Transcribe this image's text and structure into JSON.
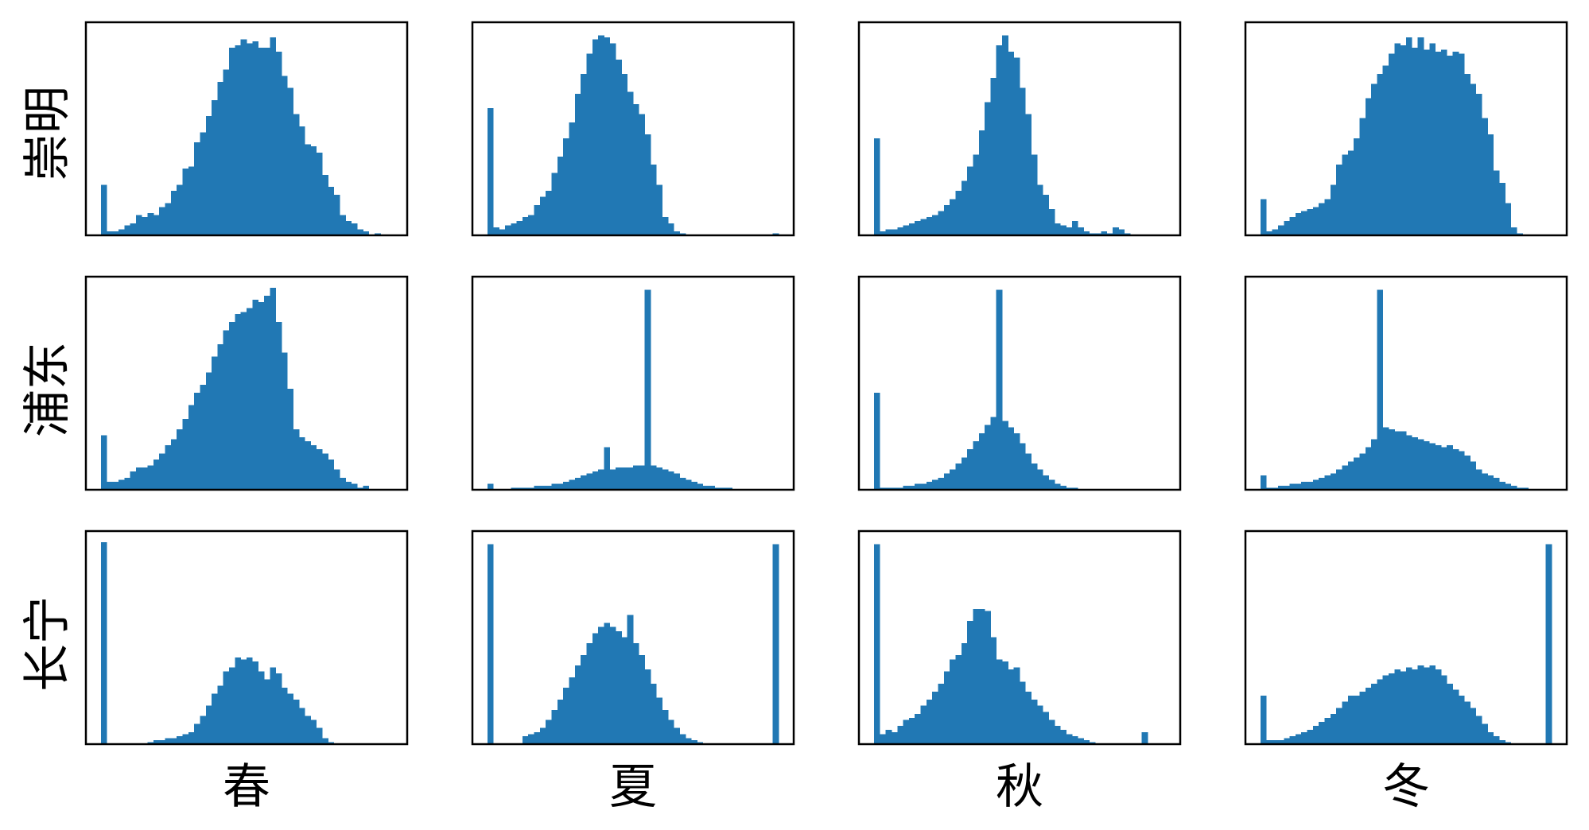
{
  "chart_data": {
    "type": "bar",
    "layout": "small-multiples-grid",
    "rows": [
      "崇明",
      "浦东",
      "长宁"
    ],
    "columns": [
      "春",
      "夏",
      "秋",
      "冬"
    ],
    "x_ticks_shown": false,
    "y_ticks_shown": false,
    "bar_color": "#2178b4",
    "bins_per_panel": 50,
    "panels": [
      {
        "row": "崇明",
        "column": "春",
        "values": [
          25,
          2,
          2,
          3,
          5,
          6,
          10,
          9,
          11,
          10,
          14,
          16,
          22,
          25,
          33,
          34,
          46,
          51,
          59,
          67,
          76,
          82,
          93,
          94,
          97,
          95,
          96,
          93,
          93,
          98,
          91,
          79,
          73,
          60,
          54,
          45,
          44,
          41,
          30,
          24,
          20,
          10,
          7,
          6,
          3,
          2,
          0,
          1,
          0,
          0
        ]
      },
      {
        "row": "崇明",
        "column": "夏",
        "values": [
          63,
          4,
          3,
          5,
          6,
          7,
          9,
          10,
          15,
          19,
          22,
          31,
          39,
          48,
          56,
          70,
          80,
          90,
          97,
          99,
          98,
          95,
          87,
          80,
          71,
          65,
          60,
          50,
          35,
          25,
          9,
          6,
          2,
          1,
          0,
          0,
          0,
          0,
          0,
          0,
          0,
          0,
          0,
          0,
          0,
          0,
          0,
          0,
          0,
          1
        ]
      },
      {
        "row": "崇明",
        "column": "秋",
        "values": [
          48,
          2,
          3,
          3,
          4,
          5,
          6,
          7,
          8,
          9,
          10,
          12,
          15,
          18,
          22,
          27,
          34,
          40,
          52,
          66,
          78,
          94,
          99,
          91,
          88,
          73,
          60,
          40,
          25,
          20,
          13,
          6,
          5,
          4,
          7,
          4,
          2,
          1,
          1,
          2,
          1,
          4,
          3,
          1,
          0,
          0,
          0,
          0,
          0,
          0
        ]
      },
      {
        "row": "崇明",
        "column": "冬",
        "values": [
          18,
          2,
          3,
          5,
          7,
          9,
          11,
          12,
          13,
          14,
          16,
          18,
          25,
          35,
          40,
          42,
          48,
          58,
          68,
          75,
          80,
          84,
          90,
          95,
          94,
          98,
          93,
          98,
          92,
          95,
          91,
          92,
          89,
          91,
          90,
          80,
          75,
          70,
          58,
          50,
          32,
          26,
          16,
          4,
          1,
          0,
          0,
          0,
          0,
          0
        ]
      },
      {
        "row": "浦东",
        "column": "春",
        "values": [
          27,
          4,
          4,
          5,
          6,
          9,
          11,
          11,
          12,
          15,
          18,
          22,
          25,
          30,
          35,
          42,
          48,
          52,
          58,
          66,
          72,
          79,
          83,
          87,
          88,
          90,
          94,
          93,
          96,
          100,
          83,
          68,
          50,
          30,
          26,
          24,
          22,
          20,
          18,
          15,
          10,
          6,
          4,
          3,
          1,
          2,
          0,
          0,
          0,
          0
        ]
      },
      {
        "row": "浦东",
        "column": "夏",
        "values": [
          3,
          0,
          0,
          0,
          1,
          1,
          1,
          1,
          2,
          2,
          2,
          3,
          3,
          4,
          5,
          6,
          7,
          8,
          9,
          10,
          21,
          10,
          11,
          11,
          11,
          12,
          12,
          99,
          12,
          11,
          10,
          9,
          8,
          6,
          5,
          4,
          3,
          2,
          2,
          1,
          1,
          1,
          0,
          0,
          0,
          0,
          0,
          0,
          0,
          0
        ]
      },
      {
        "row": "浦东",
        "column": "秋",
        "values": [
          48,
          1,
          1,
          1,
          1,
          2,
          2,
          3,
          3,
          4,
          5,
          6,
          8,
          10,
          13,
          16,
          20,
          24,
          28,
          32,
          36,
          99,
          34,
          31,
          28,
          23,
          18,
          13,
          10,
          7,
          5,
          3,
          2,
          1,
          1,
          0,
          0,
          0,
          0,
          0,
          0,
          0,
          0,
          0,
          0,
          0,
          0,
          0,
          0,
          0
        ]
      },
      {
        "row": "浦东",
        "column": "冬",
        "values": [
          7,
          1,
          1,
          2,
          2,
          3,
          3,
          4,
          4,
          5,
          6,
          7,
          8,
          10,
          12,
          14,
          16,
          18,
          21,
          25,
          99,
          31,
          30,
          29,
          29,
          27,
          26,
          25,
          24,
          23,
          22,
          21,
          22,
          20,
          19,
          17,
          14,
          10,
          8,
          7,
          6,
          4,
          3,
          2,
          1,
          1,
          0,
          0,
          0,
          0
        ]
      },
      {
        "row": "长宁",
        "column": "春",
        "values": [
          100,
          0,
          0,
          0,
          0,
          0,
          0,
          0,
          1,
          2,
          2,
          3,
          3,
          4,
          5,
          6,
          10,
          14,
          19,
          25,
          29,
          36,
          38,
          43,
          42,
          43,
          41,
          36,
          32,
          38,
          35,
          28,
          25,
          22,
          18,
          14,
          12,
          8,
          3,
          1,
          0,
          0,
          0,
          0,
          0,
          0,
          0,
          0,
          0,
          0
        ]
      },
      {
        "row": "长宁",
        "column": "夏",
        "values": [
          99,
          0,
          0,
          0,
          0,
          0,
          4,
          5,
          6,
          8,
          12,
          17,
          22,
          28,
          33,
          39,
          44,
          50,
          55,
          58,
          60,
          58,
          56,
          53,
          64,
          50,
          44,
          37,
          30,
          23,
          17,
          12,
          8,
          5,
          3,
          2,
          1,
          0,
          0,
          0,
          0,
          0,
          0,
          0,
          0,
          0,
          0,
          0,
          0,
          99
        ]
      },
      {
        "row": "长宁",
        "column": "秋",
        "values": [
          99,
          5,
          7,
          6,
          9,
          12,
          13,
          15,
          19,
          22,
          26,
          30,
          36,
          42,
          44,
          50,
          61,
          67,
          67,
          66,
          53,
          42,
          41,
          37,
          38,
          31,
          26,
          22,
          19,
          16,
          12,
          9,
          7,
          5,
          4,
          3,
          2,
          1,
          0,
          0,
          0,
          0,
          0,
          0,
          0,
          0,
          6,
          0,
          0,
          0
        ]
      },
      {
        "row": "长宁",
        "column": "冬",
        "values": [
          24,
          2,
          2,
          2,
          3,
          4,
          5,
          6,
          7,
          9,
          11,
          13,
          15,
          18,
          21,
          24,
          24,
          26,
          28,
          30,
          32,
          34,
          35,
          37,
          36,
          38,
          37,
          39,
          38,
          39,
          37,
          34,
          30,
          27,
          24,
          21,
          18,
          14,
          10,
          6,
          4,
          2,
          1,
          0,
          0,
          0,
          0,
          0,
          0,
          99
        ]
      }
    ]
  }
}
